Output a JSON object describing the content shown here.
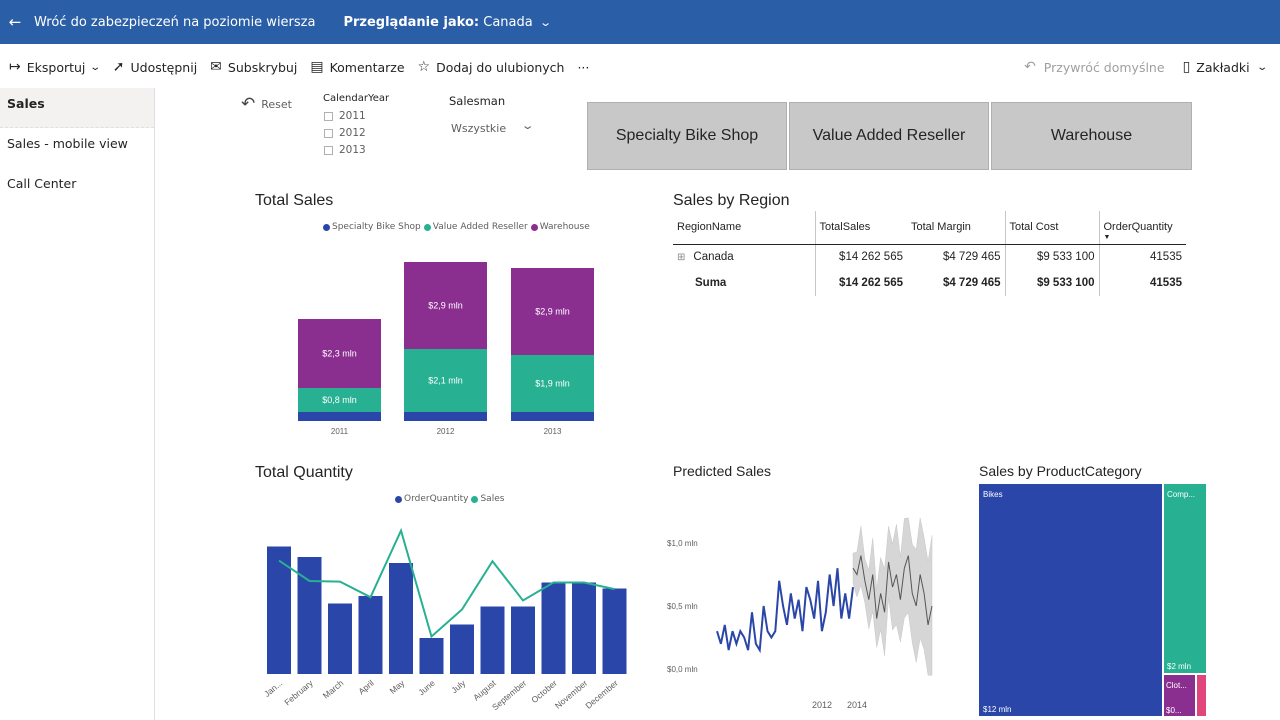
{
  "topbar": {
    "back_label": "Wróć do zabezpieczeń na poziomie wiersza",
    "viewing_as_prefix": "Przeglądanie jako:",
    "viewing_as_value": "Canada"
  },
  "toolbar": {
    "export": "Eksportuj",
    "share": "Udostępnij",
    "subscribe": "Subskrybuj",
    "comments": "Komentarze",
    "favorite": "Dodaj do ulubionych",
    "more": "···",
    "restore_defaults": "Przywróć domyślne",
    "bookmarks": "Zakładki"
  },
  "sidebar": {
    "items": [
      {
        "label": "Sales"
      },
      {
        "label": "Sales - mobile view"
      },
      {
        "label": "Call Center"
      }
    ]
  },
  "filters": {
    "reset": "Reset",
    "calendar_year": {
      "title": "CalendarYear",
      "items": [
        "2011",
        "2012",
        "2013"
      ]
    },
    "salesman": {
      "title": "Salesman",
      "value": "Wszystkie"
    },
    "tiles": [
      "Specialty Bike Shop",
      "Value Added Reseller",
      "Warehouse"
    ]
  },
  "colors": {
    "specialty": "#2a46a8",
    "value_added": "#27b092",
    "warehouse": "#8a2e90",
    "order_quantity": "#2a46a8",
    "sales_line": "#27b092",
    "treemap_bikes": "#2a46a8",
    "treemap_components": "#27b092",
    "treemap_clothing": "#8a2e90",
    "treemap_accessories": "#e0457b",
    "topbar": "#2a5fa8"
  },
  "total_sales": {
    "title": "Total Sales",
    "legend": [
      "Specialty Bike Shop",
      "Value Added Reseller",
      "Warehouse"
    ],
    "chart_data": {
      "type": "bar",
      "stacked": true,
      "categories": [
        "2011",
        "2012",
        "2013"
      ],
      "series": [
        {
          "name": "Specialty Bike Shop",
          "values": [
            0.3,
            0.3,
            0.3
          ]
        },
        {
          "name": "Value Added Reseller",
          "values": [
            0.8,
            2.1,
            1.9
          ],
          "labels": [
            "$0,8 mln",
            "$2,1 mln",
            "$1,9 mln"
          ]
        },
        {
          "name": "Warehouse",
          "values": [
            2.3,
            2.9,
            2.9
          ],
          "labels": [
            "$2,3 mln",
            "$2,9 mln",
            "$2,9 mln"
          ]
        }
      ]
    }
  },
  "sales_by_region": {
    "title": "Sales by Region",
    "columns": [
      "RegionName",
      "TotalSales",
      "Total Margin",
      "Total Cost",
      "OrderQuantity"
    ],
    "rows": [
      {
        "expand": "⊞",
        "cells": [
          "Canada",
          "$14 262 565",
          "$4 729 465",
          "$9 533 100",
          "41535"
        ]
      }
    ],
    "total": [
      "Suma",
      "$14 262 565",
      "$4 729 465",
      "$9 533 100",
      "41535"
    ]
  },
  "total_quantity": {
    "title": "Total Quantity",
    "legend": [
      "OrderQuantity",
      "Sales"
    ],
    "chart_data": {
      "type": "bar",
      "categories": [
        "January",
        "February",
        "March",
        "April",
        "May",
        "June",
        "July",
        "August",
        "September",
        "October",
        "November",
        "December"
      ],
      "category_labels": [
        "Jan...",
        "February",
        "March",
        "April",
        "May",
        "June",
        "July",
        "August",
        "September",
        "October",
        "November",
        "December"
      ],
      "series": [
        {
          "name": "OrderQuantity",
          "type": "bar",
          "values": [
            4250,
            3900,
            2350,
            2600,
            3700,
            1200,
            1650,
            2250,
            2250,
            3050,
            3050,
            2850
          ]
        },
        {
          "name": "Sales",
          "type": "line",
          "values": [
            3780,
            3100,
            3080,
            2560,
            4780,
            1250,
            2150,
            3760,
            2450,
            3050,
            3050,
            2830
          ]
        }
      ],
      "ylim": [
        0,
        5000
      ]
    }
  },
  "predicted_sales": {
    "title": "Predicted Sales",
    "chart_data": {
      "type": "line",
      "x_ticks": [
        "2012",
        "2014"
      ],
      "y_ticks": [
        "$0,0 mln",
        "$0,5 mln",
        "$1,0 mln"
      ],
      "ylim": [
        0,
        1.2
      ],
      "actual": [
        0.3,
        0.2,
        0.35,
        0.15,
        0.3,
        0.2,
        0.3,
        0.25,
        0.15,
        0.45,
        0.2,
        0.15,
        0.5,
        0.3,
        0.25,
        0.3,
        0.7,
        0.5,
        0.35,
        0.6,
        0.4,
        0.55,
        0.3,
        0.65,
        0.55,
        0.4,
        0.7,
        0.3,
        0.45,
        0.75,
        0.5,
        0.8,
        0.4,
        0.6,
        0.4,
        0.65
      ],
      "forecast": [
        0.8,
        0.75,
        0.9,
        0.7,
        0.55,
        0.75,
        0.4,
        0.6,
        0.45,
        0.85,
        0.65,
        0.75,
        0.55,
        0.8,
        0.9,
        0.6,
        0.5,
        0.75,
        0.6,
        0.35,
        0.5
      ]
    }
  },
  "sales_by_category": {
    "title": "Sales by ProductCategory",
    "chart_data": {
      "type": "treemap",
      "items": [
        {
          "name": "Bikes",
          "value_label": "$12 mln",
          "value": 12
        },
        {
          "name": "Comp...",
          "value_label": "$2 mln",
          "value": 1.8
        },
        {
          "name": "Clot...",
          "value_label": "$0...",
          "value": 0.3
        },
        {
          "name": "",
          "value_label": "",
          "value": 0.1
        }
      ]
    }
  }
}
